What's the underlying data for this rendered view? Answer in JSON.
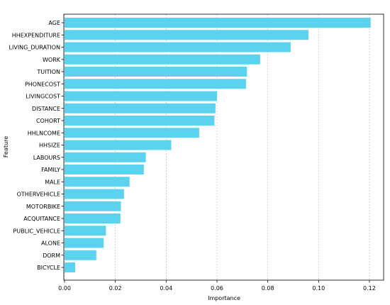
{
  "chart_data": {
    "type": "bar",
    "orientation": "horizontal",
    "title": "",
    "xlabel": "Importance",
    "ylabel": "Feature",
    "xlim": [
      0,
      0.125
    ],
    "xticks": [
      0.0,
      0.02,
      0.04,
      0.06,
      0.08,
      0.1,
      0.12
    ],
    "xtick_labels": [
      "0.00",
      "0.02",
      "0.04",
      "0.06",
      "0.08",
      "0.10",
      "0.12"
    ],
    "grid": "x-dashed",
    "bar_color": "#5bd2ee",
    "categories": [
      "AGE",
      "HHEXPENDITURE",
      "LIVING_DURATION",
      "WORK",
      "TUITION",
      "PHONECOST",
      "LIVINGCOST",
      "DISTANCE",
      "COHORT",
      "HHLNCOME",
      "HHSIZE",
      "LABOURS",
      "FAMILY",
      "MALE",
      "OTHERVEHICLE",
      "MOTORBIKE",
      "ACQUITANCE",
      "PUBLIC_VEHICLE",
      "ALONE",
      "DORM",
      "BICYCLE"
    ],
    "values": [
      0.1205,
      0.096,
      0.089,
      0.077,
      0.0718,
      0.0714,
      0.06,
      0.0594,
      0.059,
      0.053,
      0.042,
      0.032,
      0.0312,
      0.0256,
      0.0234,
      0.0222,
      0.022,
      0.0163,
      0.0154,
      0.0125,
      0.0042
    ]
  }
}
